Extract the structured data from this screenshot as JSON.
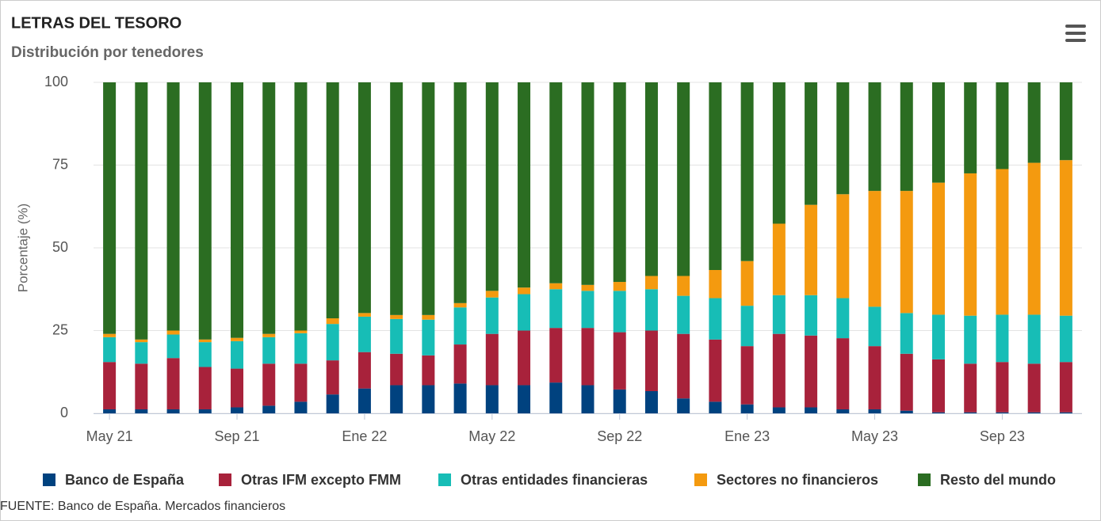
{
  "chart_data": {
    "type": "stacked_bar",
    "title": "LETRAS DEL TESORO",
    "subtitle": "Distribución por tenedores",
    "y_label": "Porcentaje (%)",
    "source": "FUENTE: Banco de España. Mercados financieros",
    "categories": [
      "May 21",
      null,
      null,
      null,
      "Sep 21",
      null,
      null,
      null,
      "Ene 22",
      null,
      null,
      null,
      "May 22",
      null,
      null,
      null,
      "Sep 22",
      null,
      null,
      null,
      "Ene 23",
      null,
      null,
      null,
      "May 23",
      null,
      null,
      null,
      "Sep 23",
      null,
      null
    ],
    "ylim": [
      0,
      100
    ],
    "yticks": [
      0,
      25,
      50,
      75,
      100
    ],
    "grid": true,
    "series": [
      {
        "name": "Banco de España",
        "color": "#00427f",
        "values": [
          1.2,
          1.2,
          1.2,
          1.2,
          1.8,
          2.3,
          3.5,
          5.7,
          7.5,
          8.5,
          8.5,
          9,
          8.5,
          8.5,
          9.3,
          8.5,
          7.2,
          6.7,
          4.5,
          3.5,
          2.7,
          1.8,
          1.8,
          1.2,
          1.2,
          0.8,
          0.3,
          0.3,
          0.3,
          0.3,
          0.3
        ]
      },
      {
        "name": "Otras IFM excepto FMM",
        "color": "#a8223b",
        "values": [
          14.3,
          13.8,
          15.5,
          12.8,
          11.7,
          12.7,
          11.5,
          10.3,
          11,
          9.5,
          9,
          11.8,
          15.5,
          16.5,
          16.5,
          17.3,
          17.3,
          18.3,
          19.5,
          18.8,
          17.6,
          22.2,
          21.7,
          21.5,
          19.1,
          17.2,
          16,
          14.7,
          15.2,
          14.7,
          15.2
        ]
      },
      {
        "name": "Otras entidades financieras",
        "color": "#17bdb6",
        "values": [
          7.5,
          6.5,
          7.1,
          7.5,
          8.3,
          8,
          9.2,
          11,
          10.7,
          10.5,
          10.8,
          11.2,
          11,
          11,
          11.7,
          11.2,
          12.5,
          12.5,
          11.5,
          12.5,
          12.2,
          11.7,
          12.2,
          12.1,
          11.9,
          12.3,
          13.5,
          14.5,
          14.3,
          14.8,
          14
        ]
      },
      {
        "name": "Sectores no financieros",
        "color": "#f49a0f",
        "values": [
          1,
          0.8,
          1.2,
          0.8,
          1,
          1,
          0.8,
          1.7,
          1.1,
          1.2,
          1.4,
          1.3,
          2,
          2,
          1.8,
          1.8,
          2.7,
          4,
          6,
          8.5,
          13.5,
          21.6,
          27.3,
          31.4,
          35,
          36.9,
          39.9,
          43,
          44,
          45.9,
          47
        ]
      },
      {
        "name": "Resto del mundo",
        "color": "#2b6d22",
        "values": [
          76,
          77.7,
          75,
          77.7,
          77.2,
          76,
          75,
          71.3,
          69.7,
          70.3,
          70.3,
          66.7,
          63,
          62,
          60.7,
          61.2,
          60.3,
          58.5,
          58.5,
          56.7,
          54,
          42.7,
          37,
          33.8,
          32.8,
          32.8,
          30.3,
          27.5,
          26.2,
          24.3,
          23.5
        ]
      }
    ]
  }
}
